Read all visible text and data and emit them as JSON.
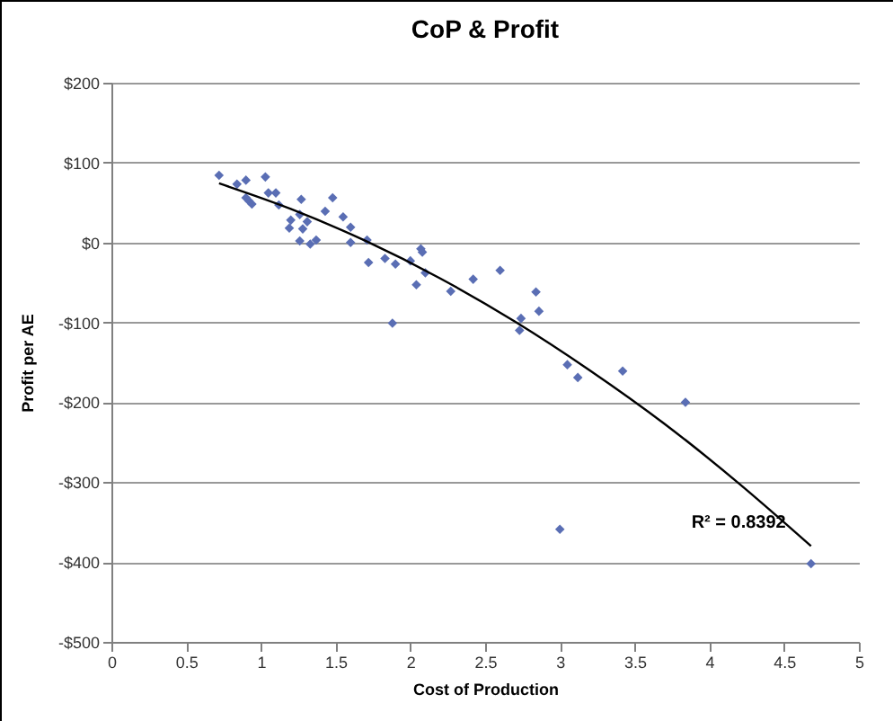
{
  "chart_data": {
    "type": "scatter",
    "title": "CoP & Profit",
    "xlabel": "Cost of Production",
    "ylabel": "Profit per AE",
    "series": [
      {
        "marker": "diamond",
        "color": "#5a6eb4",
        "x": [
          0.72,
          0.84,
          0.9,
          0.9,
          0.92,
          0.94,
          1.03,
          1.05,
          1.1,
          1.12,
          1.2,
          1.19,
          1.27,
          1.26,
          1.28,
          1.31,
          1.26,
          1.33,
          1.37,
          1.43,
          1.48,
          1.55,
          1.6,
          1.6,
          1.71,
          1.72,
          1.83,
          1.9,
          1.88,
          2.0,
          2.04,
          2.07,
          2.08,
          2.1,
          2.27,
          2.42,
          2.6,
          2.84,
          2.86,
          2.74,
          2.73,
          3.05,
          3.12,
          3.42,
          3.84,
          3.0,
          4.68
        ],
        "values": [
          84,
          73,
          78,
          56,
          52,
          48,
          82,
          62,
          62,
          47,
          28,
          18,
          54,
          35,
          17,
          26,
          2,
          -2,
          3,
          39,
          56,
          32,
          19,
          0,
          3,
          -25,
          -20,
          -27,
          -101,
          -23,
          -53,
          -8,
          -12,
          -38,
          -61,
          -46,
          -35,
          -62,
          -86,
          -95,
          -110,
          -153,
          -169,
          -161,
          -200,
          -359,
          -402
        ]
      },
      {
        "type": "line",
        "color": "#000000",
        "x": [
          0.72,
          1.2,
          1.7,
          2.2,
          2.7,
          3.2,
          3.7,
          4.2,
          4.68
        ],
        "values": [
          74,
          42,
          2,
          -45,
          -99,
          -160,
          -227,
          -302,
          -380
        ]
      }
    ],
    "xlim": [
      0,
      5
    ],
    "xticks": [
      0,
      0.5,
      1,
      1.5,
      2,
      2.5,
      3,
      3.5,
      4,
      4.5,
      5
    ],
    "ylim": [
      -500,
      200
    ],
    "yticks": [
      {
        "value": -500,
        "label": "-$500"
      },
      {
        "value": -400,
        "label": "-$400"
      },
      {
        "value": -300,
        "label": "-$300"
      },
      {
        "value": -200,
        "label": "-$200"
      },
      {
        "value": -100,
        "label": "-$100"
      },
      {
        "value": 0,
        "label": "$0"
      },
      {
        "value": 100,
        "label": "$100"
      },
      {
        "value": 200,
        "label": "$200"
      }
    ],
    "grid": "y",
    "annotations": [
      "R² = 0.8392"
    ]
  }
}
